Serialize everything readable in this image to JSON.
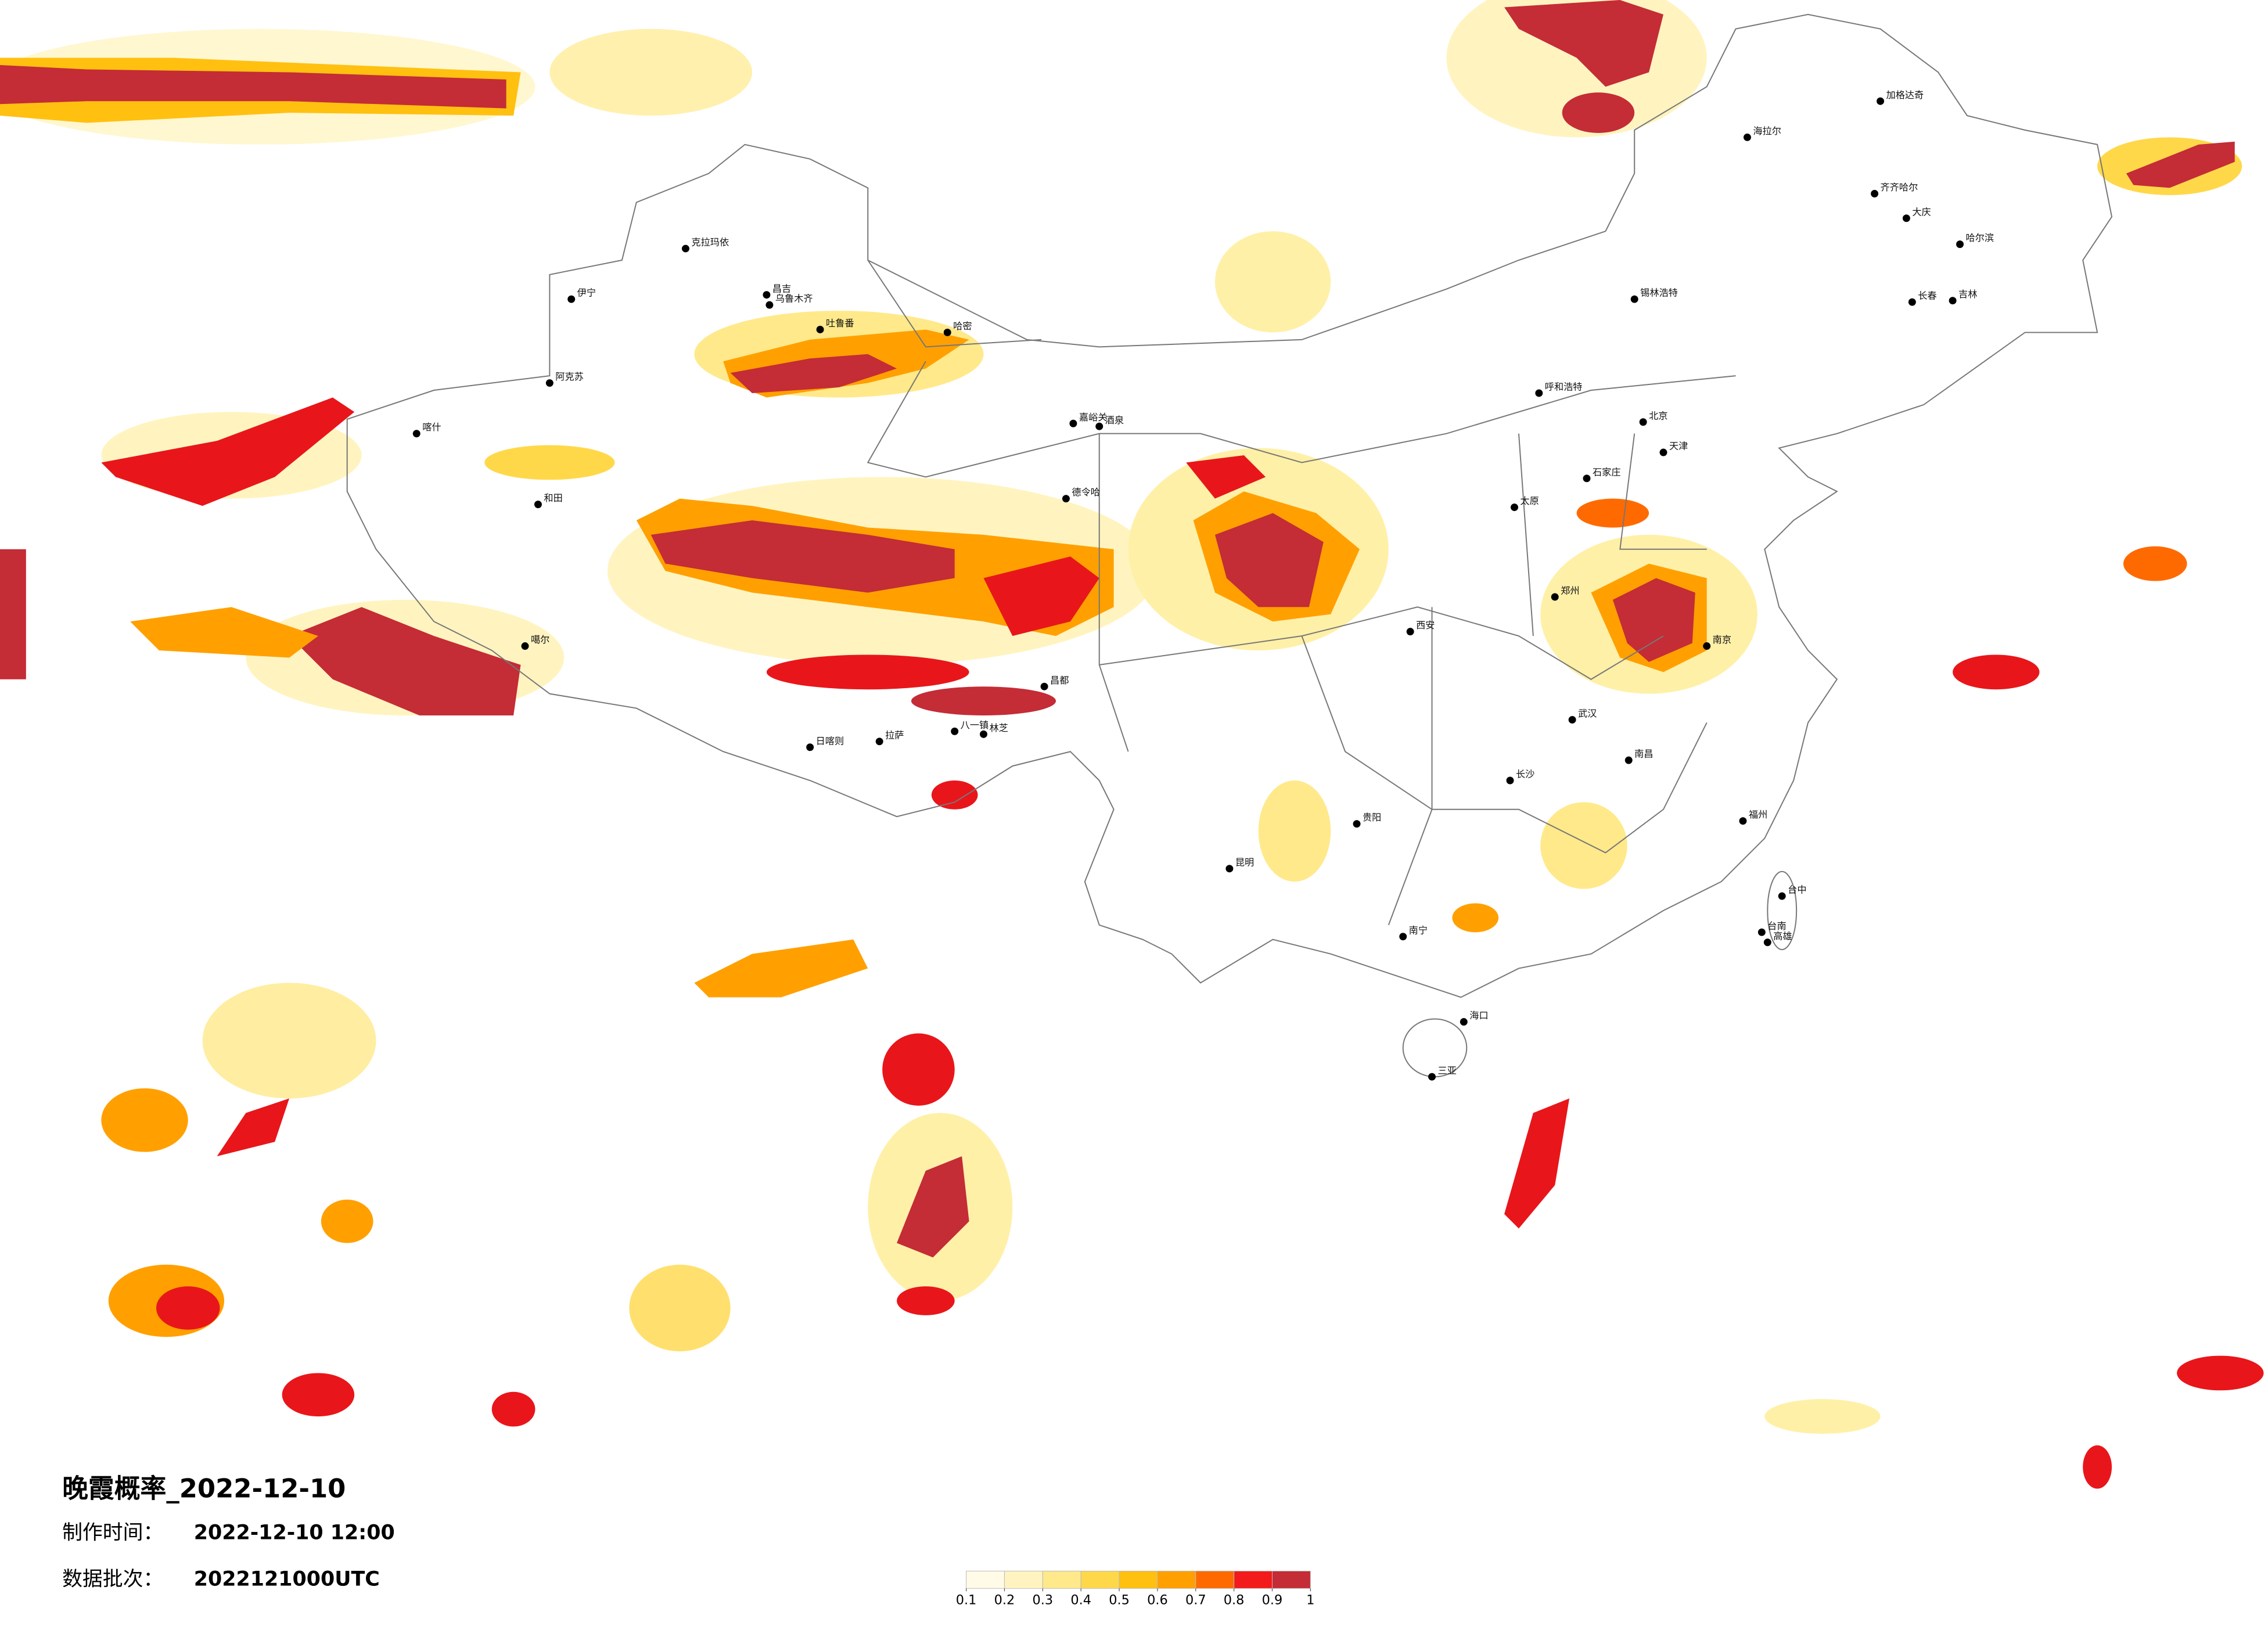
{
  "title": "晚霞概率_2022-12-10",
  "produce_time": {
    "label": "制作时间：",
    "value": "2022-12-10 12:00"
  },
  "data_batch": {
    "label": "数据批次：",
    "value": "2022121000UTC"
  },
  "legend": {
    "ticks": [
      0.1,
      0.2,
      0.3,
      0.4,
      0.5,
      0.6,
      0.7,
      0.8,
      0.9,
      1
    ],
    "colors": [
      "#fffbe6",
      "#fff4c0",
      "#ffe98a",
      "#ffd84a",
      "#ffc010",
      "#ffa000",
      "#ff6a00",
      "#f21a1a",
      "#c42c36"
    ]
  },
  "cities": [
    "克拉玛依",
    "昌吉",
    "乌鲁木齐",
    "吐鲁番",
    "哈密",
    "伊宁",
    "阿克苏",
    "喀什",
    "和田",
    "嘉峪关",
    "酒泉",
    "德令哈",
    "噶尔",
    "日喀则",
    "拉萨",
    "八一镇",
    "林芝",
    "昌都",
    "海拉尔",
    "加格达奇",
    "齐齐哈尔",
    "大庆",
    "哈尔滨",
    "长春",
    "吉林",
    "锡林浩特",
    "呼和浩特",
    "北京",
    "天津",
    "石家庄",
    "太原",
    "西安",
    "郑州",
    "武汉",
    "长沙",
    "南昌",
    "贵阳",
    "昆明",
    "南宁",
    "海口",
    "三亚",
    "台中",
    "台南",
    "高雄",
    "南京",
    "福州"
  ]
}
